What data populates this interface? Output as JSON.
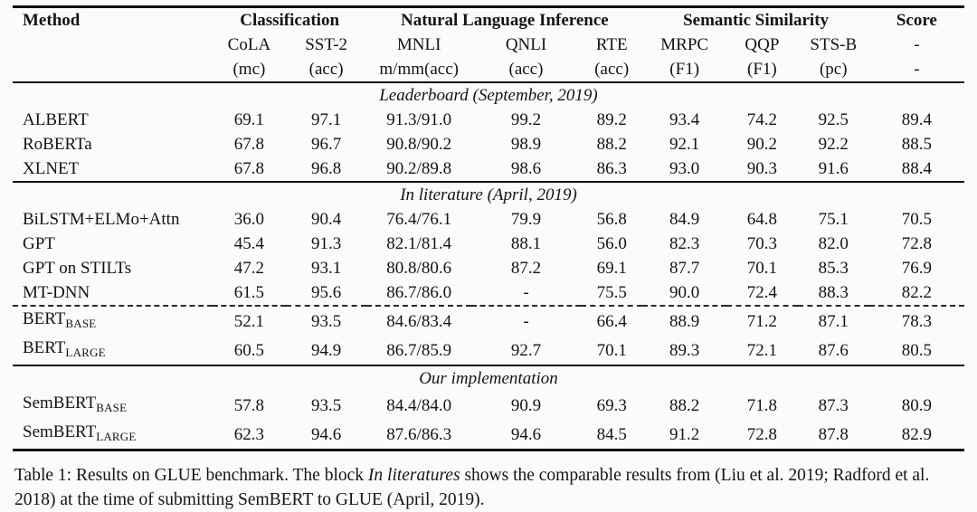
{
  "table": {
    "header": {
      "method": "Method",
      "classification": "Classification",
      "nli": "Natural Language Inference",
      "similarity": "Semantic Similarity",
      "score": "Score",
      "score_dash_task": "-",
      "score_dash_metric": "-"
    },
    "columns": [
      {
        "name": "CoLA",
        "metric": "(mc)"
      },
      {
        "name": "SST-2",
        "metric": "(acc)"
      },
      {
        "name": "MNLI",
        "metric": "m/mm(acc)"
      },
      {
        "name": "QNLI",
        "metric": "(acc)"
      },
      {
        "name": "RTE",
        "metric": "(acc)"
      },
      {
        "name": "MRPC",
        "metric": "(F1)"
      },
      {
        "name": "QQP",
        "metric": "(F1)"
      },
      {
        "name": "STS-B",
        "metric": "(pc)"
      }
    ],
    "sections": [
      {
        "title": "Leaderboard (September, 2019)",
        "rows": [
          {
            "method": "ALBERT",
            "sub": "",
            "dashed": false,
            "values": [
              "69.1",
              "97.1",
              "91.3/91.0",
              "99.2",
              "89.2",
              "93.4",
              "74.2",
              "92.5",
              "89.4"
            ]
          },
          {
            "method": "RoBERTa",
            "sub": "",
            "dashed": false,
            "values": [
              "67.8",
              "96.7",
              "90.8/90.2",
              "98.9",
              "88.2",
              "92.1",
              "90.2",
              "92.2",
              "88.5"
            ]
          },
          {
            "method": "XLNET",
            "sub": "",
            "dashed": false,
            "values": [
              "67.8",
              "96.8",
              "90.2/89.8",
              "98.6",
              "86.3",
              "93.0",
              "90.3",
              "91.6",
              "88.4"
            ]
          }
        ]
      },
      {
        "title": "In literature (April, 2019)",
        "rows": [
          {
            "method": "BiLSTM+ELMo+Attn",
            "sub": "",
            "dashed": false,
            "values": [
              "36.0",
              "90.4",
              "76.4/76.1",
              "79.9",
              "56.8",
              "84.9",
              "64.8",
              "75.1",
              "70.5"
            ]
          },
          {
            "method": "GPT",
            "sub": "",
            "dashed": false,
            "values": [
              "45.4",
              "91.3",
              "82.1/81.4",
              "88.1",
              "56.0",
              "82.3",
              "70.3",
              "82.0",
              "72.8"
            ]
          },
          {
            "method": "GPT on STILTs",
            "sub": "",
            "dashed": false,
            "values": [
              "47.2",
              "93.1",
              "80.8/80.6",
              "87.2",
              "69.1",
              "87.7",
              "70.1",
              "85.3",
              "76.9"
            ]
          },
          {
            "method": "MT-DNN",
            "sub": "",
            "dashed": false,
            "values": [
              "61.5",
              "95.6",
              "86.7/86.0",
              "-",
              "75.5",
              "90.0",
              "72.4",
              "88.3",
              "82.2"
            ]
          },
          {
            "method": "BERT",
            "sub": "BASE",
            "dashed": true,
            "values": [
              "52.1",
              "93.5",
              "84.6/83.4",
              "-",
              "66.4",
              "88.9",
              "71.2",
              "87.1",
              "78.3"
            ]
          },
          {
            "method": "BERT",
            "sub": "LARGE",
            "dashed": false,
            "values": [
              "60.5",
              "94.9",
              "86.7/85.9",
              "92.7",
              "70.1",
              "89.3",
              "72.1",
              "87.6",
              "80.5"
            ]
          }
        ]
      },
      {
        "title": "Our implementation",
        "rows": [
          {
            "method": "SemBERT",
            "sub": "BASE",
            "dashed": false,
            "values": [
              "57.8",
              "93.5",
              "84.4/84.0",
              "90.9",
              "69.3",
              "88.2",
              "71.8",
              "87.3",
              "80.9"
            ]
          },
          {
            "method": "SemBERT",
            "sub": "LARGE",
            "dashed": false,
            "values": [
              "62.3",
              "94.6",
              "87.6/86.3",
              "94.6",
              "84.5",
              "91.2",
              "72.8",
              "87.8",
              "82.9"
            ]
          }
        ]
      }
    ]
  },
  "caption": {
    "prefix": "Table 1: Results on GLUE benchmark. The block ",
    "italic": "In literatures",
    "suffix": " shows the comparable results from (Liu et al. 2019; Radford et al. 2018) at the time of submitting SemBERT to GLUE (April, 2019)."
  }
}
